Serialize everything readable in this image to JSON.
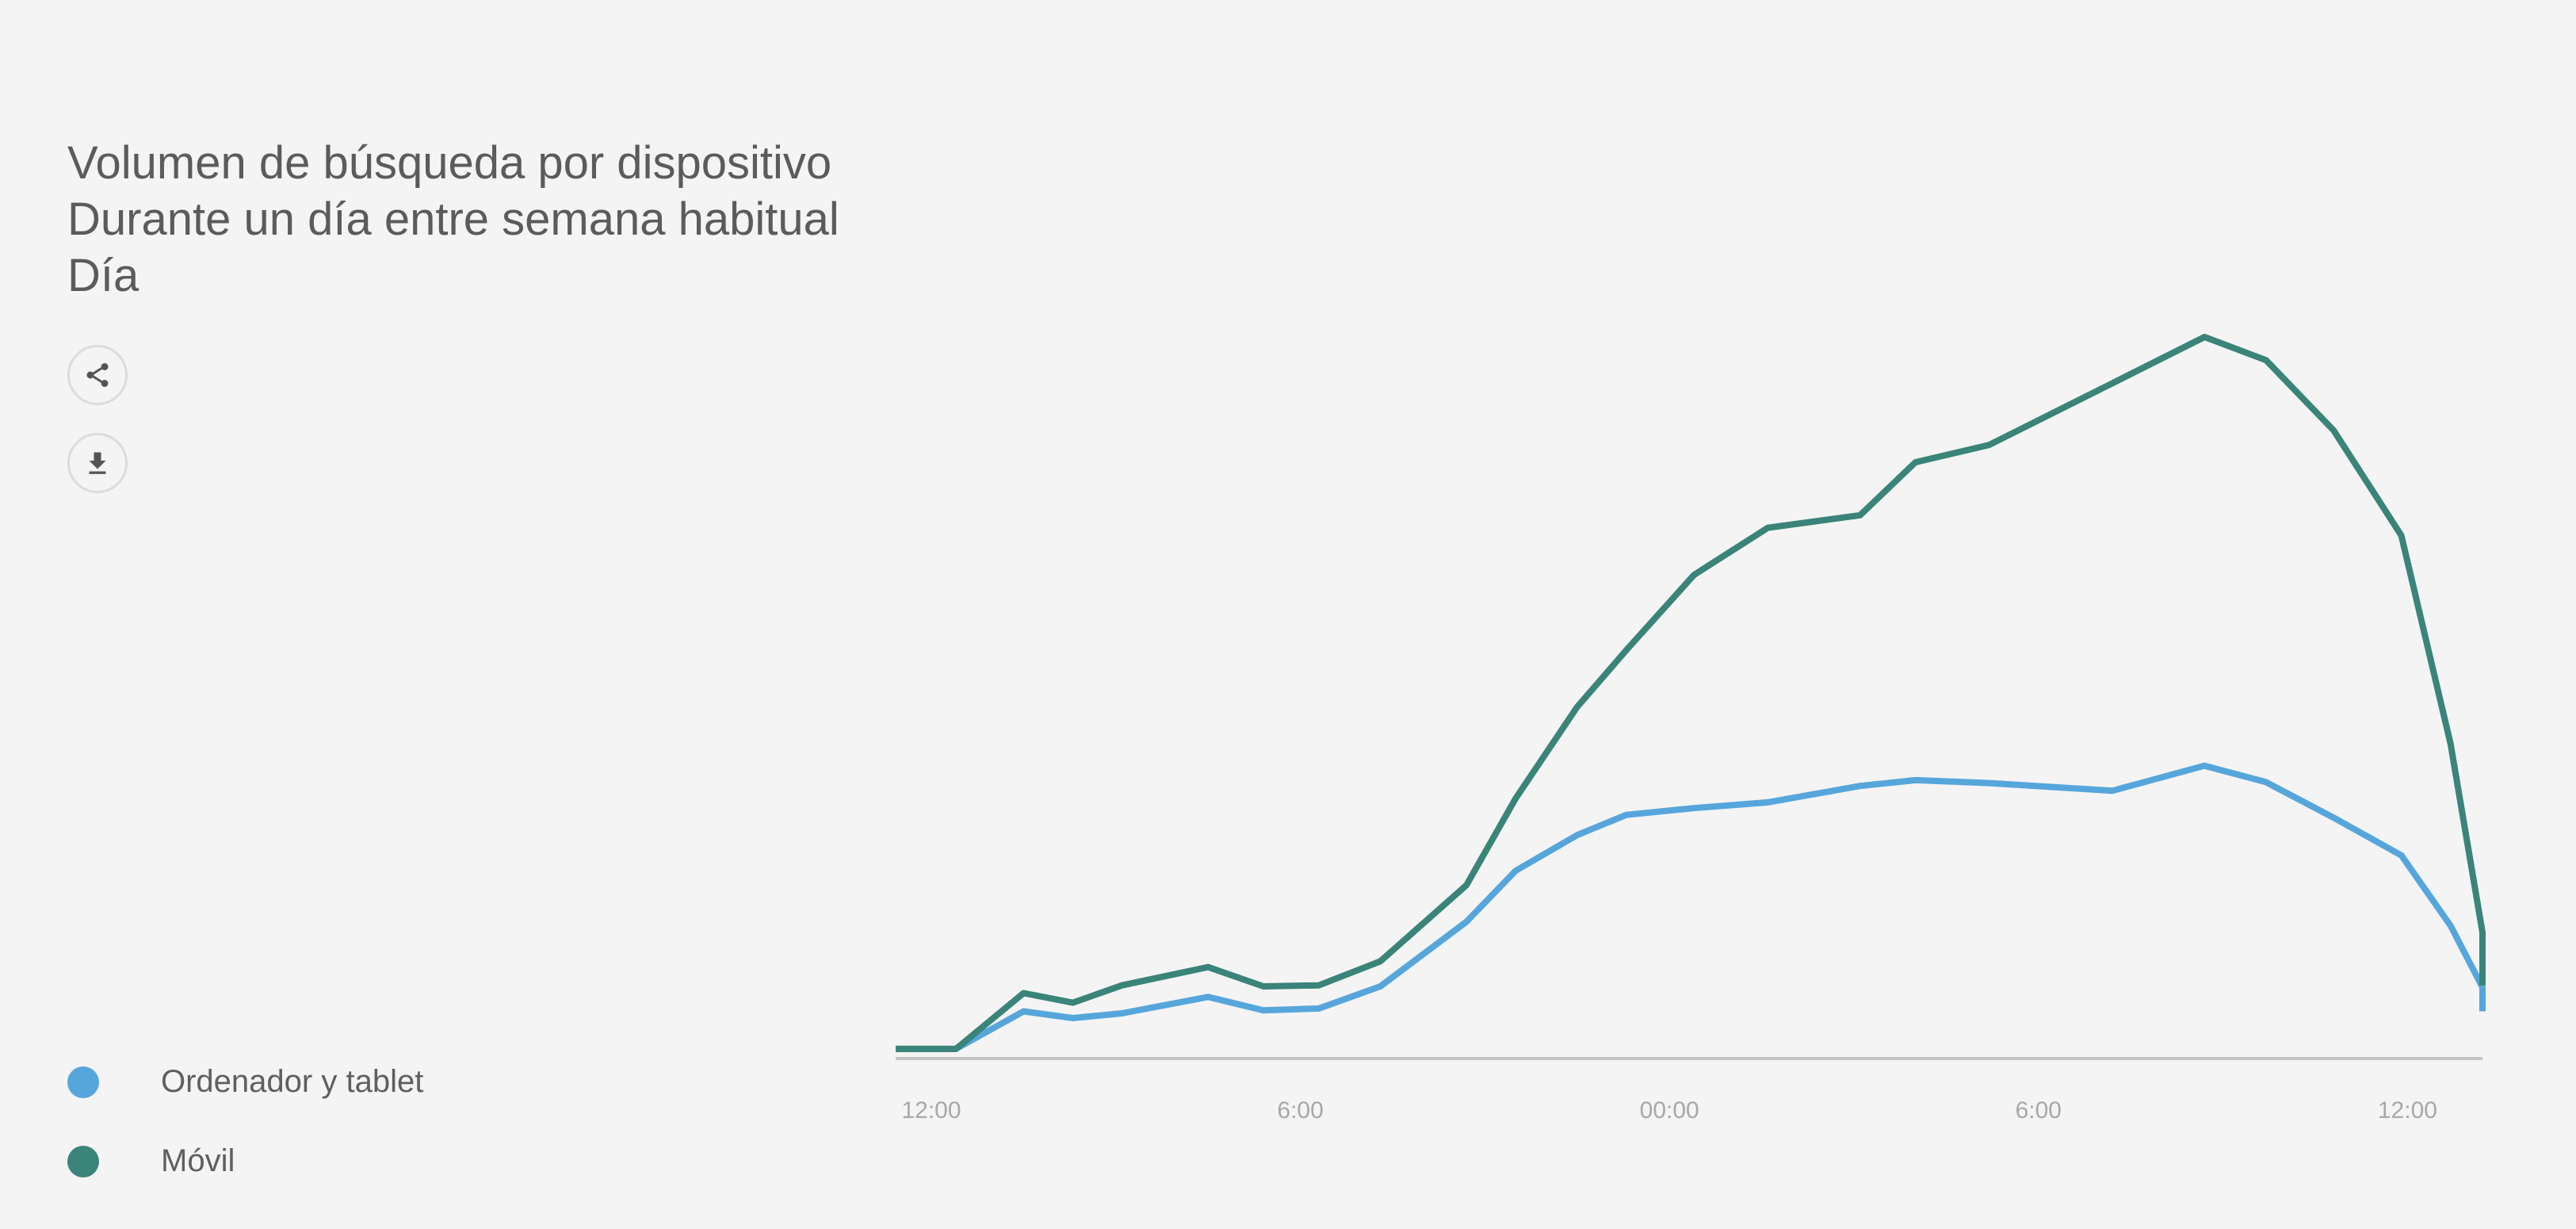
{
  "header": {
    "title_line1": "Volumen de búsqueda por dispositivo",
    "title_line2": "Durante un día entre semana habitual",
    "title_line3": "Día"
  },
  "actions": {
    "share_icon": "share-icon",
    "download_icon": "download-icon"
  },
  "chart_data": {
    "type": "line",
    "x_tick_labels": [
      "12:00",
      "6:00",
      "00:00",
      "6:00",
      "12:00"
    ],
    "x_tick_hours": [
      0,
      6,
      12,
      18,
      24
    ],
    "x": [
      -0.6,
      0.4,
      1.5,
      2.3,
      3.1,
      4.5,
      5.4,
      6.3,
      7.3,
      8.7,
      9.5,
      10.5,
      11.3,
      12.4,
      13.6,
      15.1,
      16.0,
      17.2,
      19.2,
      20.7,
      21.7,
      22.8,
      23.9,
      24.7,
      25.7,
      26.6
    ],
    "series": [
      {
        "name": "Ordenador y tablet",
        "color": "#56a6dc",
        "values": [
          0.5,
          0.5,
          4.4,
          3.7,
          4.2,
          5.9,
          4.5,
          4.7,
          7.0,
          13.7,
          19.0,
          22.7,
          24.8,
          25.5,
          26.1,
          27.8,
          28.4,
          28.1,
          27.3,
          29.9,
          28.2,
          24.5,
          20.6,
          13.3,
          6.9,
          4.4
        ]
      },
      {
        "name": "Móvil",
        "color": "#3a8479",
        "values": [
          0.5,
          0.5,
          6.3,
          5.3,
          7.1,
          9.0,
          7.0,
          7.1,
          9.6,
          17.5,
          26.5,
          36.0,
          41.9,
          49.7,
          54.6,
          55.9,
          61.4,
          63.2,
          69.6,
          74.4,
          72.0,
          64.7,
          53.8,
          32.2,
          12.6,
          7.1
        ]
      }
    ],
    "ylim": [
      0,
      100
    ],
    "grid": false,
    "legend_position": "bottom-left"
  },
  "legend": {
    "items": [
      {
        "label": "Ordenador y tablet",
        "color": "#56a6dc"
      },
      {
        "label": "Móvil",
        "color": "#3a8479"
      }
    ]
  }
}
